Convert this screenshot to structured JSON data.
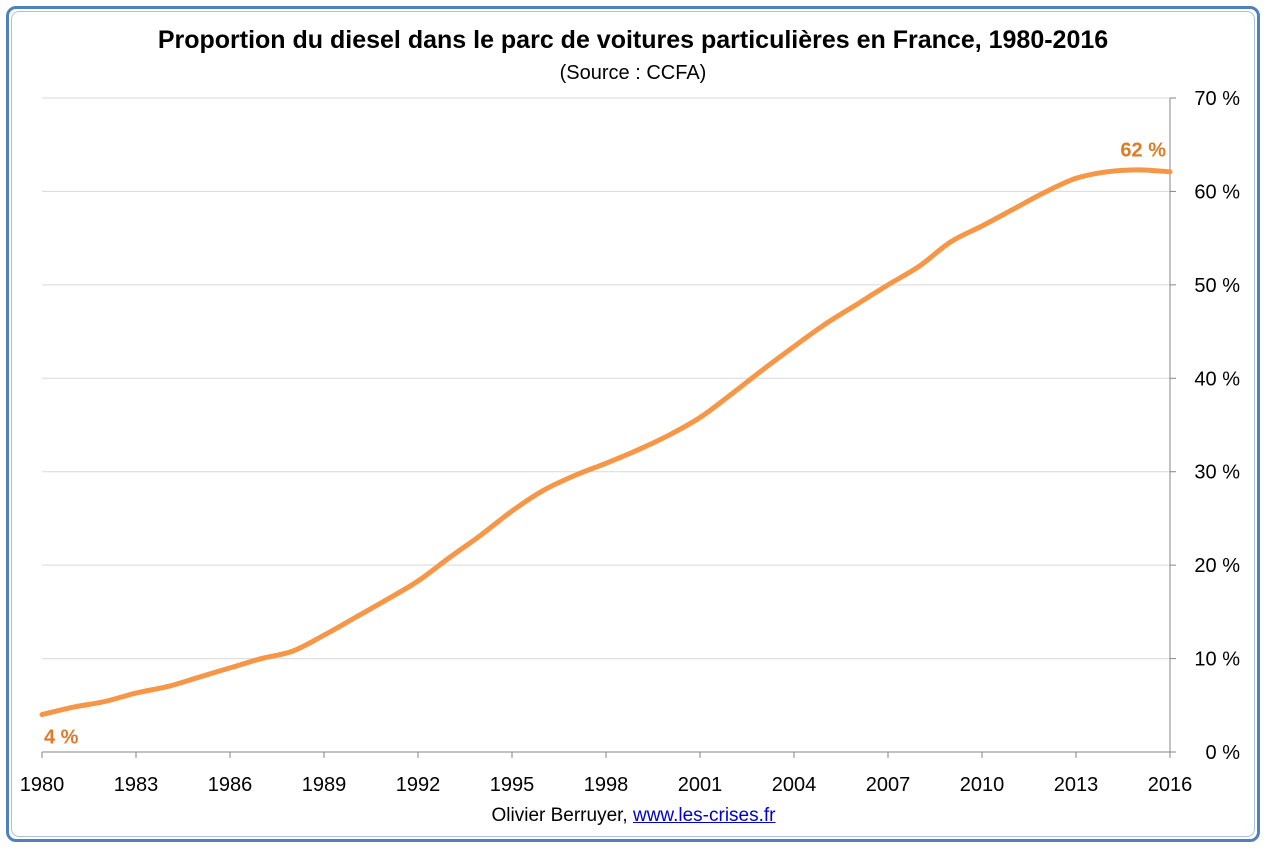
{
  "chart_data": {
    "type": "line",
    "title": "Proportion du diesel dans le parc de voitures particulières en France, 1980-2016",
    "subtitle": "(Source : CCFA)",
    "xlabel": "",
    "ylabel": "",
    "x_ticks": [
      "1980",
      "1983",
      "1986",
      "1989",
      "1992",
      "1995",
      "1998",
      "2001",
      "2004",
      "2007",
      "2010",
      "2013",
      "2016"
    ],
    "y_ticks": [
      "0 %",
      "10 %",
      "20 %",
      "30 %",
      "40 %",
      "50 %",
      "60 %",
      "70 %"
    ],
    "xlim": [
      1980,
      2016
    ],
    "ylim": [
      0,
      70
    ],
    "y_axis_side": "right",
    "grid": true,
    "line_color": "#f79646",
    "annotation_color": "#e07a26",
    "series": [
      {
        "x": [
          1980,
          1981,
          1982,
          1983,
          1984,
          1985,
          1986,
          1987,
          1988,
          1989,
          1990,
          1991,
          1992,
          1993,
          1994,
          1995,
          1996,
          1997,
          1998,
          1999,
          2000,
          2001,
          2002,
          2003,
          2004,
          2005,
          2006,
          2007,
          2008,
          2009,
          2010,
          2011,
          2012,
          2013,
          2014,
          2015,
          2016
        ],
        "values": [
          4.0,
          4.8,
          5.4,
          6.3,
          7.0,
          8.0,
          9.0,
          10.0,
          10.8,
          12.5,
          14.4,
          16.3,
          18.3,
          20.8,
          23.2,
          25.8,
          28.0,
          29.6,
          30.9,
          32.3,
          33.9,
          35.8,
          38.3,
          40.9,
          43.4,
          45.8,
          47.9,
          50.0,
          52.0,
          54.6,
          56.3,
          58.1,
          59.9,
          61.4,
          62.1,
          62.3,
          62.1
        ]
      }
    ],
    "annotations": [
      {
        "text": "4 %",
        "x": 1980,
        "y": 4
      },
      {
        "text": "62 %",
        "x": 2016,
        "y": 62
      }
    ]
  },
  "credit": {
    "author": "Olivier Berruyer,",
    "link": "www.les-crises.fr"
  }
}
